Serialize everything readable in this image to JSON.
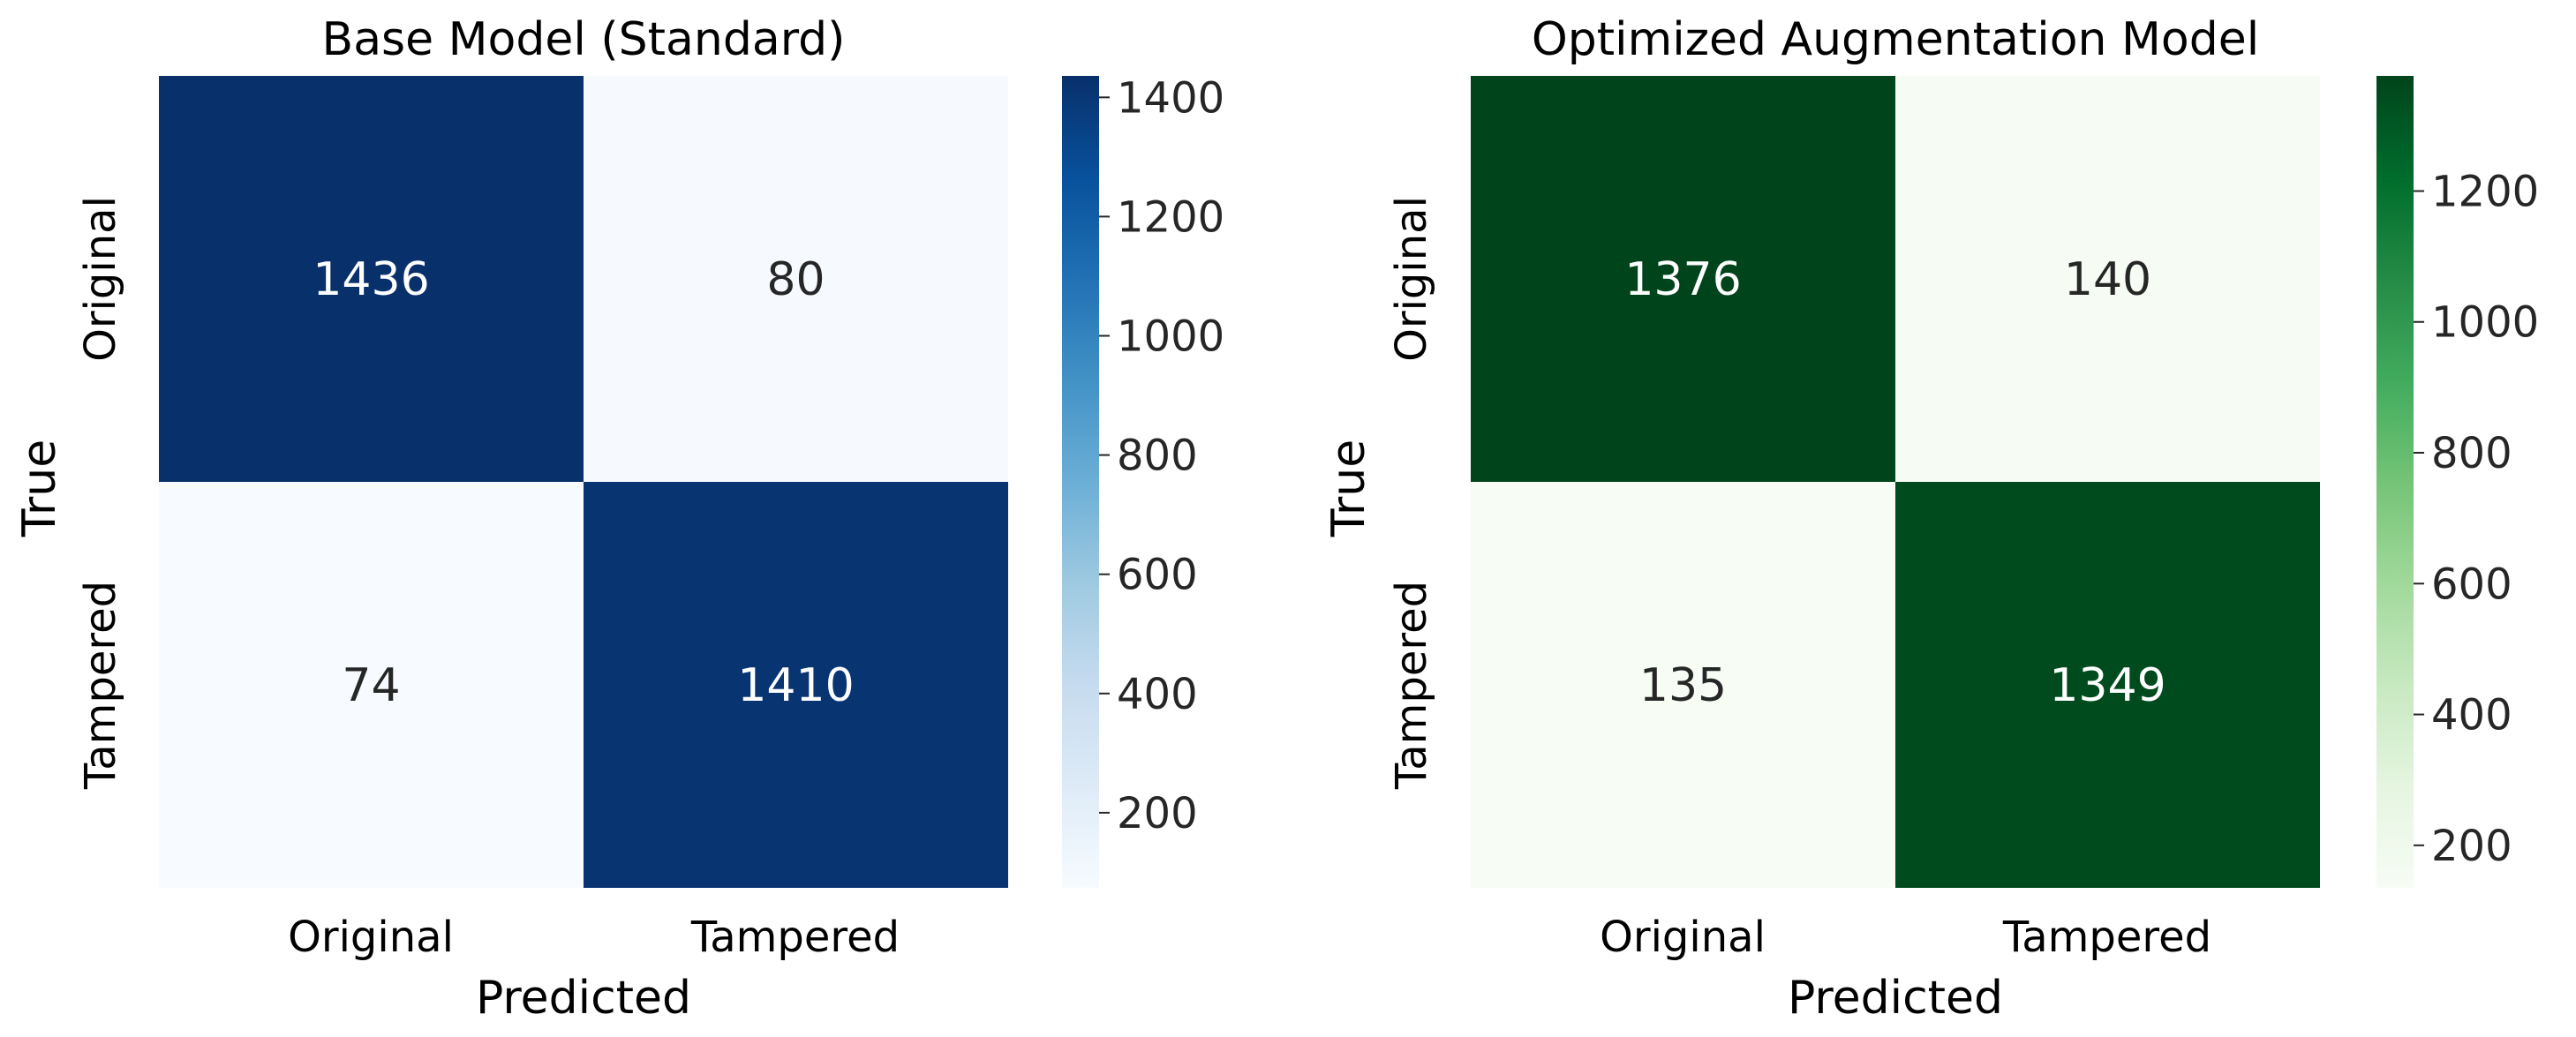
{
  "chart_data": [
    {
      "type": "heatmap",
      "title": "Base Model (Standard)",
      "xlabel": "Predicted",
      "ylabel": "True",
      "x_categories": [
        "Original",
        "Tampered"
      ],
      "y_categories": [
        "Original",
        "Tampered"
      ],
      "values": [
        [
          1436,
          80
        ],
        [
          74,
          1410
        ]
      ],
      "colormap": "Blues",
      "color_low": "#f7fbff",
      "color_high": "#08306b",
      "colorbar": {
        "range": [
          74,
          1436
        ],
        "ticks": [
          200,
          400,
          600,
          800,
          1000,
          1200,
          1400
        ]
      },
      "grid": false,
      "legend": "colorbar-right"
    },
    {
      "type": "heatmap",
      "title": "Optimized Augmentation Model",
      "xlabel": "Predicted",
      "ylabel": "True",
      "x_categories": [
        "Original",
        "Tampered"
      ],
      "y_categories": [
        "Original",
        "Tampered"
      ],
      "values": [
        [
          1376,
          140
        ],
        [
          135,
          1349
        ]
      ],
      "colormap": "Greens",
      "color_low": "#f7fcf5",
      "color_high": "#00441b",
      "colorbar": {
        "range": [
          135,
          1376
        ],
        "ticks": [
          200,
          400,
          600,
          800,
          1000,
          1200
        ]
      },
      "grid": false,
      "legend": "colorbar-right"
    }
  ]
}
